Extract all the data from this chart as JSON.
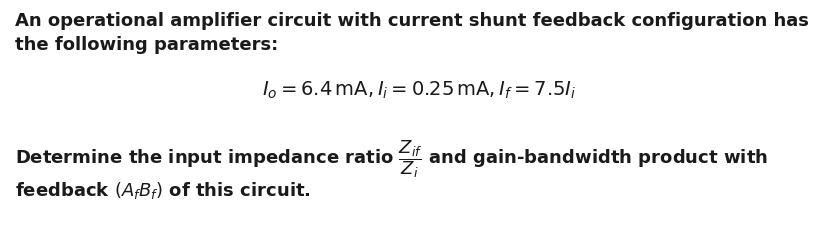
{
  "bg_color": "#ffffff",
  "text_color": "#1a1a1a",
  "line1": "An operational amplifier circuit with current shunt feedback configuration has",
  "line2": "the following parameters:",
  "equation": "$I_o = 6.4\\,\\mathrm{mA}, I_i = 0.25\\,\\mathrm{mA}, I_f = 7.5I_i$",
  "line4_full": "Determine the input impedance ratio $\\dfrac{Z_{if}}{Z_i}$ and gain-bandwidth product with",
  "line5": "feedback $(A_f B_f)$ of this circuit.",
  "fontsize_body": 13.0,
  "fontsize_eq": 14.0,
  "fig_width": 8.39,
  "fig_height": 2.3,
  "dpi": 100
}
